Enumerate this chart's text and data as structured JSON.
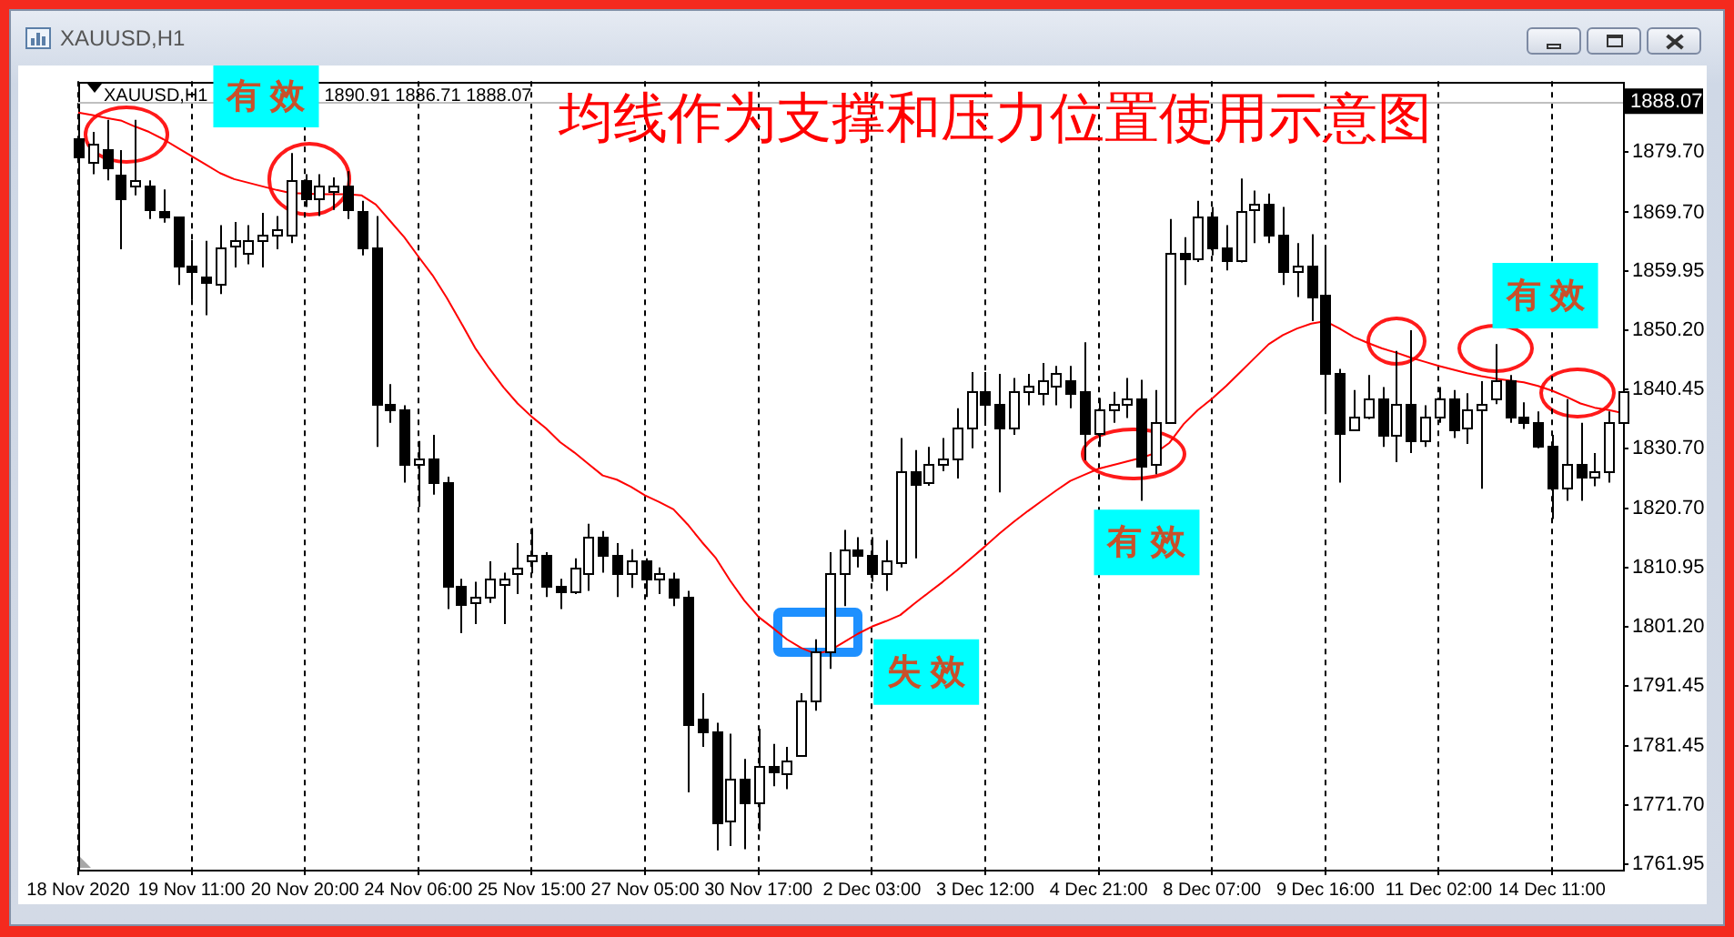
{
  "chart_data": {
    "type": "candlestick",
    "title": "均线作为支撑和压力位置使用示意图",
    "categories": [
      "18 Nov 2020",
      null,
      null,
      null,
      null,
      null,
      null,
      null,
      "19 Nov 11:00",
      null,
      null,
      null,
      null,
      null,
      null,
      null,
      "20 Nov 20:00",
      null,
      null,
      null,
      null,
      null,
      null,
      null,
      "24 Nov 06:00",
      null,
      null,
      null,
      null,
      null,
      null,
      null,
      "25 Nov 15:00",
      null,
      null,
      null,
      null,
      null,
      null,
      null,
      "27 Nov 05:00",
      null,
      null,
      null,
      null,
      null,
      null,
      null,
      "30 Nov 17:00",
      null,
      null,
      null,
      null,
      null,
      null,
      null,
      "2 Dec 03:00",
      null,
      null,
      null,
      null,
      null,
      null,
      null,
      "3 Dec 12:00",
      null,
      null,
      null,
      null,
      null,
      null,
      null,
      "4 Dec 21:00",
      null,
      null,
      null,
      null,
      null,
      null,
      null,
      "8 Dec 07:00",
      null,
      null,
      null,
      null,
      null,
      null,
      null,
      "9 Dec 16:00",
      null,
      null,
      null,
      null,
      null,
      null,
      null,
      "11 Dec 02:00",
      null,
      null,
      null,
      null,
      null,
      null,
      null,
      "14 Dec 11:00",
      null,
      null,
      null,
      null,
      null
    ],
    "ohlc": [
      [
        1882.0,
        1883.5,
        1875.5,
        1879.0
      ],
      [
        1878.0,
        1883.0,
        1876.0,
        1881.0
      ],
      [
        1880.0,
        1885.0,
        1875.0,
        1877.0
      ],
      [
        1876.0,
        1880.0,
        1863.6,
        1872.0
      ],
      [
        1874.0,
        1885.0,
        1872.5,
        1875.0
      ],
      [
        1874.0,
        1875.0,
        1868.6,
        1870.0
      ],
      [
        1870.0,
        1873.5,
        1868.0,
        1869.0
      ],
      [
        1869.0,
        1869.0,
        1857.7,
        1861.0
      ],
      [
        1861.0,
        1865.1,
        1855.2,
        1860.0
      ],
      [
        1859.0,
        1865.0,
        1852.7,
        1858.0
      ],
      [
        1858.0,
        1867.6,
        1856.2,
        1864.0
      ],
      [
        1864.0,
        1868.1,
        1860.6,
        1865.0
      ],
      [
        1863.0,
        1867.6,
        1861.1,
        1865.0
      ],
      [
        1865.0,
        1869.6,
        1860.6,
        1866.0
      ],
      [
        1866.0,
        1869.1,
        1863.6,
        1867.0
      ],
      [
        1866.0,
        1879.5,
        1864.6,
        1875.0
      ],
      [
        1875.0,
        1876.0,
        1870.6,
        1872.0
      ],
      [
        1872.0,
        1876.0,
        1869.1,
        1874.0
      ],
      [
        1873.0,
        1875.5,
        1870.1,
        1874.0
      ],
      [
        1874.0,
        1876.5,
        1868.6,
        1870.0
      ],
      [
        1870.0,
        1871.6,
        1862.6,
        1864.0
      ],
      [
        1864.0,
        1869.1,
        1830.9,
        1838.0
      ],
      [
        1838.0,
        1841.3,
        1834.9,
        1837.0
      ],
      [
        1837.0,
        1837.8,
        1825.0,
        1828.0
      ],
      [
        1828.0,
        1831.9,
        1821.0,
        1829.0
      ],
      [
        1829.0,
        1832.9,
        1823.0,
        1825.0
      ],
      [
        1825.0,
        1826.0,
        1804.1,
        1808.0
      ],
      [
        1808.0,
        1809.1,
        1800.1,
        1805.0
      ],
      [
        1805.0,
        1808.6,
        1801.6,
        1806.0
      ],
      [
        1806.0,
        1812.0,
        1805.1,
        1809.0
      ],
      [
        1808.0,
        1810.1,
        1801.6,
        1809.0
      ],
      [
        1810.0,
        1815.0,
        1806.6,
        1811.0
      ],
      [
        1812.0,
        1817.5,
        1810.0,
        1813.0
      ],
      [
        1813.0,
        1813.5,
        1806.1,
        1808.0
      ],
      [
        1808.0,
        1809.1,
        1804.1,
        1807.0
      ],
      [
        1807.0,
        1812.5,
        1806.6,
        1811.0
      ],
      [
        1810.0,
        1818.2,
        1807.1,
        1816.0
      ],
      [
        1816.0,
        1817.0,
        1810.1,
        1813.0
      ],
      [
        1813.0,
        1815.0,
        1806.1,
        1810.0
      ],
      [
        1810.0,
        1814.0,
        1807.6,
        1812.0
      ],
      [
        1812.0,
        1812.5,
        1806.1,
        1809.0
      ],
      [
        1809.0,
        1811.0,
        1806.6,
        1810.0
      ],
      [
        1809.0,
        1810.1,
        1804.6,
        1806.0
      ],
      [
        1806.0,
        1807.1,
        1773.8,
        1785.0
      ],
      [
        1786.0,
        1790.2,
        1781.3,
        1784.0
      ],
      [
        1784.0,
        1785.3,
        1764.2,
        1769.0
      ],
      [
        1769.0,
        1783.5,
        1764.9,
        1776.0
      ],
      [
        1776.0,
        1779.3,
        1764.4,
        1772.0
      ],
      [
        1772.0,
        1784.3,
        1767.4,
        1778.0
      ],
      [
        1778.0,
        1781.8,
        1774.8,
        1777.0
      ],
      [
        1777.0,
        1781.3,
        1774.3,
        1779.0
      ],
      [
        1780.0,
        1790.2,
        1779.8,
        1789.0
      ],
      [
        1789.0,
        1799.1,
        1787.3,
        1797.0
      ],
      [
        1797.0,
        1813.5,
        1794.2,
        1810.0
      ],
      [
        1810.0,
        1817.2,
        1804.6,
        1814.0
      ],
      [
        1814.0,
        1816.0,
        1811.0,
        1813.0
      ],
      [
        1813.0,
        1816.0,
        1808.6,
        1810.0
      ],
      [
        1810.0,
        1815.5,
        1807.1,
        1812.0
      ],
      [
        1812.0,
        1832.4,
        1811.0,
        1827.0
      ],
      [
        1827.0,
        1830.4,
        1812.5,
        1825.0
      ],
      [
        1825.0,
        1830.9,
        1824.5,
        1828.0
      ],
      [
        1828.0,
        1832.4,
        1826.9,
        1829.0
      ],
      [
        1829.0,
        1837.3,
        1825.7,
        1834.0
      ],
      [
        1834.0,
        1843.3,
        1830.7,
        1840.0
      ],
      [
        1840.0,
        1843.3,
        1834.4,
        1838.0
      ],
      [
        1838.0,
        1843.0,
        1823.4,
        1834.0
      ],
      [
        1834.0,
        1842.3,
        1832.9,
        1840.0
      ],
      [
        1840.0,
        1843.0,
        1837.8,
        1841.0
      ],
      [
        1840.0,
        1844.8,
        1837.8,
        1842.0
      ],
      [
        1841.0,
        1844.3,
        1837.8,
        1843.0
      ],
      [
        1842.0,
        1844.3,
        1837.3,
        1840.0
      ],
      [
        1840.0,
        1848.2,
        1828.7,
        1833.0
      ],
      [
        1833.0,
        1839.0,
        1830.9,
        1837.0
      ],
      [
        1837.0,
        1840.0,
        1834.9,
        1838.0
      ],
      [
        1838.0,
        1842.3,
        1835.7,
        1839.0
      ],
      [
        1839.0,
        1842.0,
        1822.0,
        1828.0
      ],
      [
        1828.0,
        1840.3,
        1826.4,
        1835.0
      ],
      [
        1835.0,
        1868.6,
        1834.9,
        1863.0
      ],
      [
        1863.0,
        1865.6,
        1857.7,
        1862.0
      ],
      [
        1862.0,
        1871.6,
        1861.5,
        1869.0
      ],
      [
        1869.0,
        1870.6,
        1862.6,
        1864.0
      ],
      [
        1864.0,
        1867.6,
        1860.1,
        1862.0
      ],
      [
        1862.0,
        1875.3,
        1861.4,
        1870.0
      ],
      [
        1870.0,
        1873.3,
        1864.6,
        1871.0
      ],
      [
        1871.0,
        1872.8,
        1864.6,
        1866.0
      ],
      [
        1866.0,
        1870.6,
        1857.7,
        1860.0
      ],
      [
        1860.0,
        1864.6,
        1855.7,
        1861.0
      ],
      [
        1861.0,
        1866.1,
        1851.7,
        1856.0
      ],
      [
        1856.0,
        1864.1,
        1836.8,
        1843.0
      ],
      [
        1843.0,
        1843.8,
        1825.0,
        1833.0
      ],
      [
        1834.0,
        1840.3,
        1833.7,
        1836.0
      ],
      [
        1836.0,
        1842.8,
        1835.5,
        1839.0
      ],
      [
        1839.0,
        1840.8,
        1830.9,
        1833.0
      ],
      [
        1833.0,
        1846.8,
        1828.4,
        1838.0
      ],
      [
        1838.0,
        1850.2,
        1829.9,
        1832.0
      ],
      [
        1832.0,
        1837.8,
        1830.9,
        1836.0
      ],
      [
        1836.0,
        1840.8,
        1834.9,
        1839.0
      ],
      [
        1839.0,
        1840.3,
        1832.4,
        1834.0
      ],
      [
        1834.0,
        1839.8,
        1831.4,
        1837.0
      ],
      [
        1837.0,
        1841.8,
        1824.0,
        1838.0
      ],
      [
        1839.0,
        1847.9,
        1838.0,
        1842.0
      ],
      [
        1842.0,
        1842.8,
        1834.9,
        1836.0
      ],
      [
        1836.0,
        1838.3,
        1833.9,
        1835.0
      ],
      [
        1835.0,
        1836.8,
        1830.7,
        1831.0
      ],
      [
        1831.0,
        1832.9,
        1819.0,
        1824.0
      ],
      [
        1824.0,
        1838.8,
        1822.0,
        1828.0
      ],
      [
        1828.0,
        1834.9,
        1822.0,
        1826.0
      ],
      [
        1826.0,
        1829.9,
        1824.4,
        1827.0
      ],
      [
        1827.0,
        1836.8,
        1825.0,
        1835.0
      ],
      [
        1835.0,
        1843.8,
        1832.9,
        1840.0
      ]
    ],
    "color": "#000000",
    "colors": [
      "#000000",
      "#ffffff",
      "#000000",
      "#000000",
      "#ffffff",
      "#000000",
      "#000000",
      "#000000",
      "#000000",
      "#000000",
      "#ffffff",
      "#ffffff",
      "#ffffff",
      "#ffffff",
      "#ffffff",
      "#ffffff",
      "#000000",
      "#ffffff",
      "#ffffff",
      "#000000",
      "#000000",
      "#000000",
      "#000000",
      "#000000",
      "#ffffff",
      "#000000",
      "#000000",
      "#000000",
      "#ffffff",
      "#ffffff",
      "#ffffff",
      "#ffffff",
      "#ffffff",
      "#000000",
      "#000000",
      "#ffffff",
      "#ffffff",
      "#000000",
      "#000000",
      "#ffffff",
      "#000000",
      "#ffffff",
      "#000000",
      "#000000",
      "#000000",
      "#000000",
      "#ffffff",
      "#000000",
      "#ffffff",
      "#000000",
      "#ffffff",
      "#ffffff",
      "#ffffff",
      "#ffffff",
      "#ffffff",
      "#000000",
      "#000000",
      "#ffffff",
      "#ffffff",
      "#000000",
      "#ffffff",
      "#ffffff",
      "#ffffff",
      "#ffffff",
      "#000000",
      "#000000",
      "#ffffff",
      "#ffffff",
      "#ffffff",
      "#ffffff",
      "#000000",
      "#000000",
      "#ffffff",
      "#ffffff",
      "#ffffff",
      "#000000",
      "#ffffff",
      "#ffffff",
      "#000000",
      "#ffffff",
      "#000000",
      "#000000",
      "#ffffff",
      "#ffffff",
      "#000000",
      "#000000",
      "#ffffff",
      "#000000",
      "#000000",
      "#000000",
      "#ffffff",
      "#ffffff",
      "#000000",
      "#ffffff",
      "#000000",
      "#ffffff",
      "#ffffff",
      "#000000",
      "#ffffff",
      "#ffffff",
      "#ffffff",
      "#000000",
      "#000000",
      "#000000",
      "#000000",
      "#ffffff",
      "#000000",
      "#ffffff",
      "#ffffff",
      "#ffffff"
    ],
    "series": [
      {
        "type": "line",
        "color": "#ff0000",
        "values": [
          1886.2,
          1885.8,
          1885.3,
          1884.9,
          1883.9,
          1883.0,
          1881.8,
          1880.4,
          1879.0,
          1877.6,
          1876.2,
          1875.2,
          1874.6,
          1874.0,
          1873.4,
          1872.9,
          1872.8,
          1872.7,
          1872.7,
          1872.7,
          1872.5,
          1871.0,
          1868.3,
          1865.6,
          1862.4,
          1859.3,
          1855.6,
          1851.5,
          1847.3,
          1843.9,
          1840.8,
          1838.1,
          1835.9,
          1834.0,
          1831.7,
          1830.0,
          1828.1,
          1826.2,
          1825.5,
          1824.3,
          1822.9,
          1821.8,
          1820.6,
          1818.1,
          1815.2,
          1812.5,
          1808.8,
          1805.5,
          1802.8,
          1801.0,
          1799.1,
          1797.7,
          1796.7,
          1797.2,
          1798.6,
          1800.0,
          1801.2,
          1802.1,
          1803.1,
          1805.0,
          1806.8,
          1808.6,
          1810.5,
          1812.5,
          1814.5,
          1816.6,
          1818.5,
          1820.3,
          1822.0,
          1823.7,
          1825.3,
          1826.3,
          1827.3,
          1827.9,
          1828.5,
          1829.1,
          1829.9,
          1831.6,
          1834.7,
          1837.0,
          1838.9,
          1841.0,
          1843.3,
          1845.6,
          1847.9,
          1849.4,
          1850.5,
          1851.3,
          1851.7,
          1850.5,
          1849.1,
          1848.1,
          1847.2,
          1846.5,
          1845.7,
          1845.0,
          1844.3,
          1843.7,
          1843.1,
          1842.6,
          1842.2,
          1841.9,
          1841.6,
          1841.0,
          1840.2,
          1839.2,
          1838.1,
          1837.4,
          1837.0,
          1836.5
        ]
      }
    ],
    "ylim": [
      1761.0,
      1891.4
    ],
    "yticks": [
      {
        "value": 1879.7,
        "label": "1879.70"
      },
      {
        "value": 1869.7,
        "label": "1869.70"
      },
      1859.95,
      {
        "value": 1850.2,
        "label": "1850.20"
      },
      1840.45,
      {
        "value": 1830.7,
        "label": "1830.70"
      },
      {
        "value": 1820.7,
        "label": "1820.70"
      },
      1810.95,
      {
        "value": 1801.2,
        "label": "1801.20"
      },
      1791.45,
      1781.45,
      {
        "value": 1771.7,
        "label": "1771.70"
      },
      1761.95
    ],
    "ref_lines": [
      {
        "axis": "y",
        "value": 1888.07,
        "label": "1888.07",
        "color": "#c0c0c0"
      }
    ],
    "grid": "x",
    "annotations": [
      "XAUUSD,H1",
      "XAUUSD,H1",
      "1890.91 1886.71 1888.07",
      "有效",
      "失效",
      "有效",
      "有效"
    ]
  }
}
